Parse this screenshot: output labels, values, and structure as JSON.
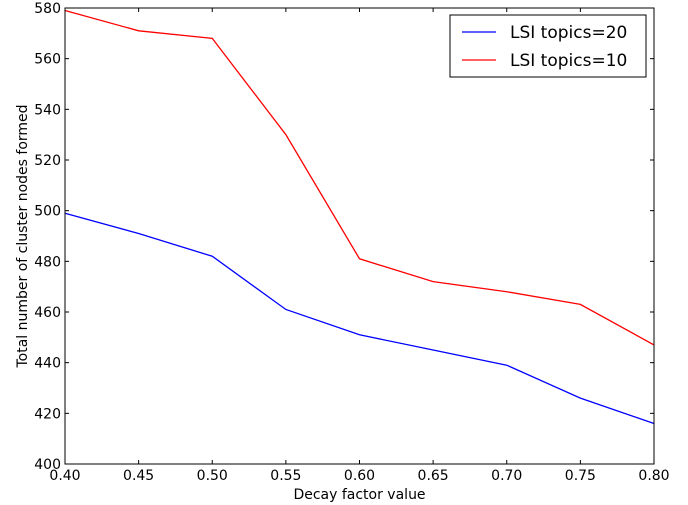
{
  "chart_data": {
    "type": "line",
    "title": "",
    "xlabel": "Decay factor value",
    "ylabel": "Total number of cluster nodes formed",
    "xlim": [
      0.4,
      0.8
    ],
    "ylim": [
      400,
      580
    ],
    "xticks": [
      "0.40",
      "0.45",
      "0.50",
      "0.55",
      "0.60",
      "0.65",
      "0.70",
      "0.75",
      "0.80"
    ],
    "yticks": [
      "400",
      "420",
      "440",
      "460",
      "480",
      "500",
      "520",
      "540",
      "560",
      "580"
    ],
    "grid": false,
    "legend_position": "top-right",
    "x": [
      0.4,
      0.45,
      0.5,
      0.55,
      0.6,
      0.65,
      0.7,
      0.75,
      0.8
    ],
    "series": [
      {
        "name": "LSI topics=20",
        "color": "#0000ff",
        "values": [
          499,
          491,
          482,
          461,
          451,
          445,
          439,
          426,
          416
        ]
      },
      {
        "name": "LSI topics=10",
        "color": "#ff0000",
        "values": [
          579,
          571,
          568,
          530,
          481,
          472,
          468,
          463,
          447
        ]
      }
    ]
  }
}
